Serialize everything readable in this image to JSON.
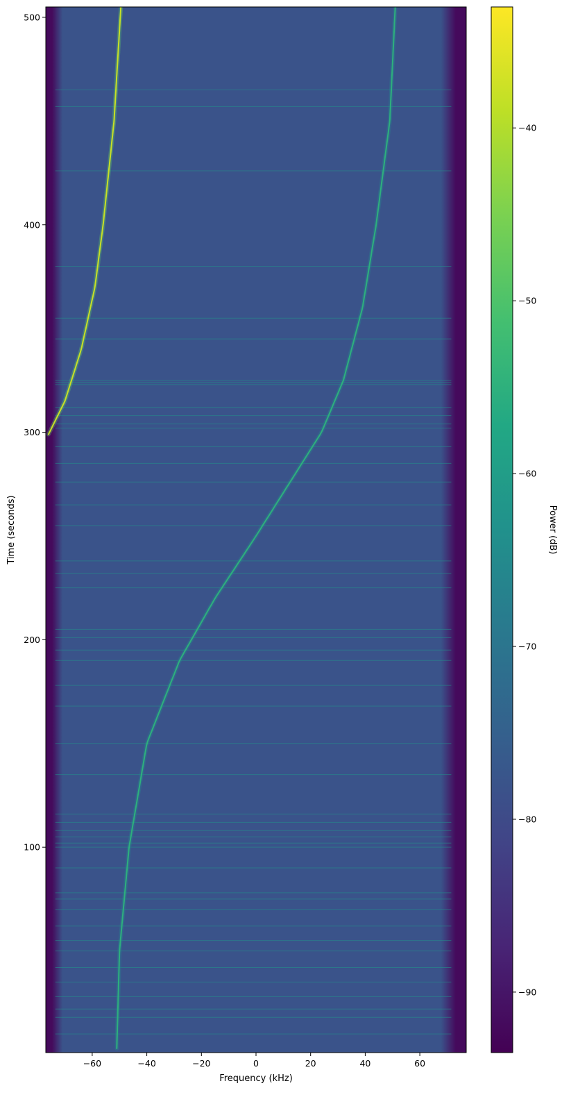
{
  "chart_data": {
    "type": "heatmap",
    "subtype": "spectrogram",
    "colormap": "viridis",
    "xlabel": "Frequency (kHz)",
    "ylabel": "Time (seconds)",
    "xlim": [
      -77,
      77
    ],
    "ylim": [
      1,
      505
    ],
    "x_ticks": [
      -60,
      -40,
      -20,
      0,
      20,
      40,
      60
    ],
    "x_tick_labels": [
      "−60",
      "−40",
      "−20",
      "0",
      "20",
      "40",
      "60"
    ],
    "y_ticks": [
      100,
      200,
      300,
      400,
      500
    ],
    "y_tick_labels": [
      "100",
      "200",
      "300",
      "400",
      "500"
    ],
    "colorbar": {
      "label": "Power (dB)",
      "range": [
        -93.5,
        -33
      ],
      "ticks": [
        -90,
        -80,
        -70,
        -60,
        -50,
        -40
      ],
      "tick_labels": [
        "−90",
        "−80",
        "−70",
        "−60",
        "−50",
        "−40"
      ]
    },
    "grid": false,
    "background_power_db": -78,
    "passband_kHz": [
      -72,
      70
    ],
    "out_of_band_power_db": -92,
    "series": [
      {
        "name": "",
        "type": "doppler_track",
        "color_power_db": -55,
        "points": [
          {
            "t": 3,
            "f": -51
          },
          {
            "t": 50,
            "f": -50
          },
          {
            "t": 100,
            "f": -46.5
          },
          {
            "t": 150,
            "f": -40
          },
          {
            "t": 190,
            "f": -28
          },
          {
            "t": 220,
            "f": -15
          },
          {
            "t": 250,
            "f": 0
          },
          {
            "t": 275,
            "f": 12
          },
          {
            "t": 300,
            "f": 24
          },
          {
            "t": 325,
            "f": 32
          },
          {
            "t": 360,
            "f": 39
          },
          {
            "t": 400,
            "f": 44
          },
          {
            "t": 450,
            "f": 49
          },
          {
            "t": 505,
            "f": 51
          }
        ]
      },
      {
        "name": "",
        "type": "doppler_track_aliased",
        "color_power_db": -38,
        "points": [
          {
            "t": 299,
            "f": -76
          },
          {
            "t": 315,
            "f": -70
          },
          {
            "t": 340,
            "f": -64
          },
          {
            "t": 370,
            "f": -59
          },
          {
            "t": 400,
            "f": -56
          },
          {
            "t": 450,
            "f": -52
          },
          {
            "t": 505,
            "f": -49.5
          }
        ]
      }
    ],
    "horizontal_interference_times": [
      10,
      18,
      22,
      28,
      35,
      42,
      50,
      55,
      62,
      70,
      75,
      78,
      90,
      100,
      102,
      105,
      108,
      112,
      116,
      135,
      150,
      168,
      178,
      190,
      195,
      201,
      205,
      225,
      232,
      238,
      255,
      265,
      276,
      285,
      293,
      302,
      304,
      308,
      312,
      323,
      324,
      325,
      345,
      355,
      380,
      426,
      457,
      465
    ]
  }
}
